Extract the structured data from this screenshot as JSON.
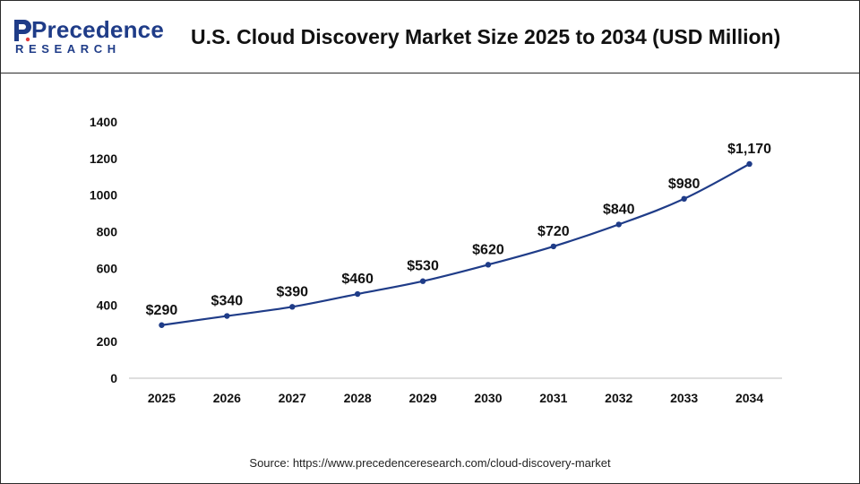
{
  "brand": {
    "name": "Precedence",
    "tagline": "RESEARCH",
    "color": "#1f3c88"
  },
  "chart_data": {
    "type": "line",
    "title": "U.S. Cloud Discovery Market Size 2025 to 2034 (USD Million)",
    "xlabel": "",
    "ylabel": "",
    "categories": [
      "2025",
      "2026",
      "2027",
      "2028",
      "2029",
      "2030",
      "2031",
      "2032",
      "2033",
      "2034"
    ],
    "series": [
      {
        "values": [
          290,
          340,
          390,
          460,
          530,
          620,
          720,
          840,
          980,
          1170
        ],
        "labels": [
          "$290",
          "$340",
          "$390",
          "$460",
          "$530",
          "$620",
          "$720",
          "$840",
          "$980",
          "$1,170"
        ],
        "color": "#1f3c88"
      }
    ],
    "ylim": [
      0,
      1400
    ],
    "yticks": [
      "0",
      "200",
      "400",
      "600",
      "800",
      "1000",
      "1200",
      "1400"
    ],
    "grid": false,
    "legend": "none"
  },
  "source": "Source: https://www.precedenceresearch.com/cloud-discovery-market"
}
